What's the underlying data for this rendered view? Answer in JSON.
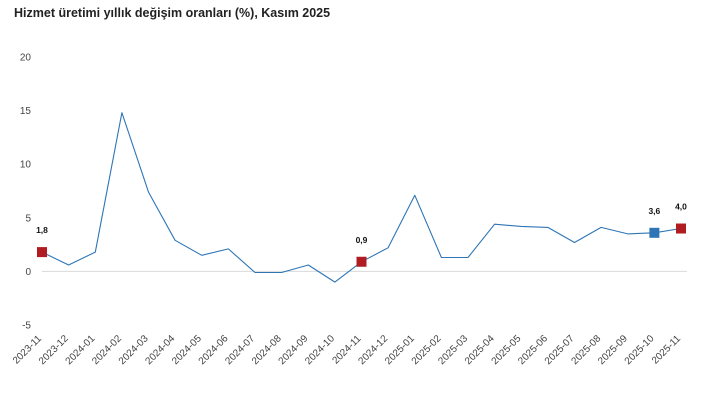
{
  "chart_data": {
    "type": "line",
    "title": "Hizmet üretimi yıllık değişim oranları (%), Kasım 2025",
    "xlabel": "",
    "ylabel": "",
    "ylim": [
      -5,
      20
    ],
    "yticks": [
      "-5",
      "0",
      "5",
      "10",
      "15",
      "20"
    ],
    "grid": false,
    "categories": [
      "2023-11",
      "2023-12",
      "2024-01",
      "2024-02",
      "2024-03",
      "2024-04",
      "2024-05",
      "2024-06",
      "2024-07",
      "2024-08",
      "2024-09",
      "2024-10",
      "2024-11",
      "2024-12",
      "2025-01",
      "2025-02",
      "2025-03",
      "2025-04",
      "2025-05",
      "2025-06",
      "2025-07",
      "2025-08",
      "2025-09",
      "2025-10",
      "2025-11"
    ],
    "series": [
      {
        "values": [
          1.8,
          0.6,
          1.8,
          14.8,
          7.4,
          2.9,
          1.5,
          2.1,
          -0.1,
          -0.1,
          0.6,
          -1.0,
          0.9,
          2.2,
          7.1,
          1.3,
          1.3,
          4.4,
          4.2,
          4.1,
          2.7,
          4.1,
          3.5,
          3.6,
          4.0
        ],
        "color": "#2e75b6"
      }
    ],
    "annotations": [
      {
        "index": 0,
        "label": "1,8",
        "color": "#b01c22"
      },
      {
        "index": 12,
        "label": "0,9",
        "color": "#b01c22"
      },
      {
        "index": 23,
        "label": "3,6",
        "color": "#2e75b6"
      },
      {
        "index": 24,
        "label": "4,0",
        "color": "#b01c22"
      }
    ]
  }
}
